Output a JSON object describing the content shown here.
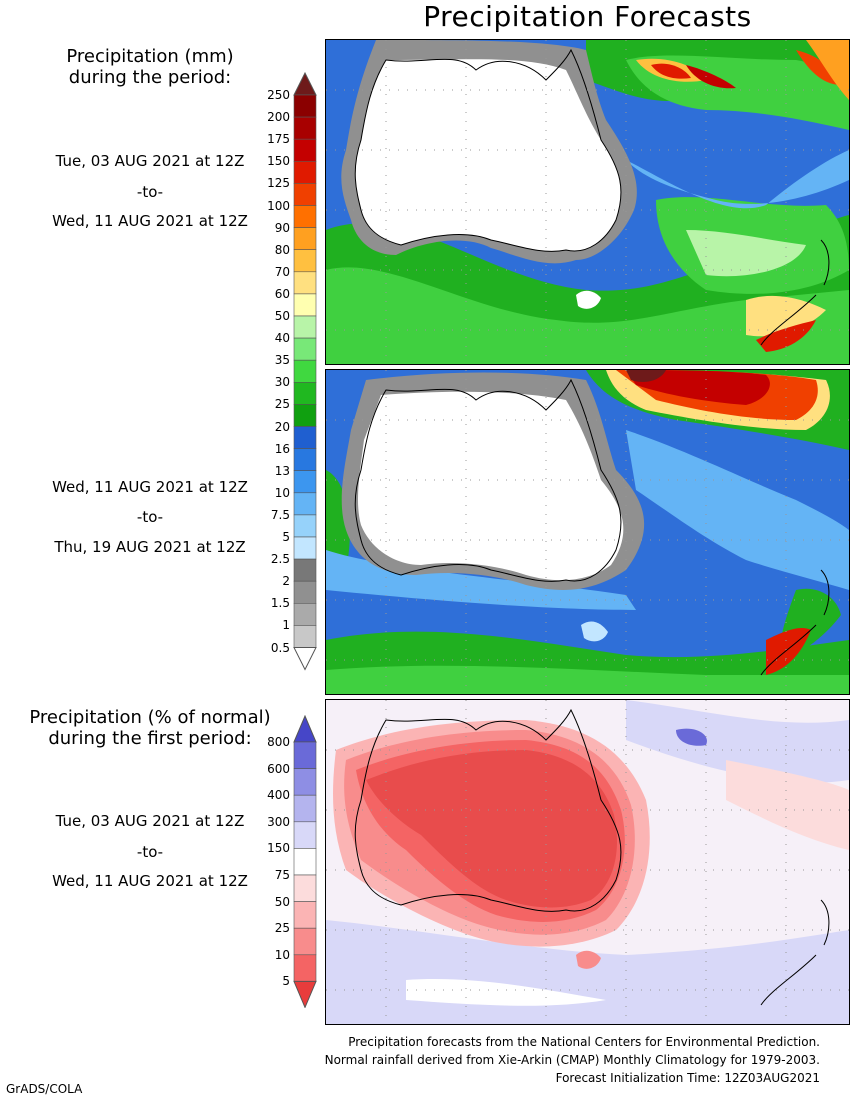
{
  "title": "Precipitation Forecasts",
  "legend_mm": {
    "title_line1": "Precipitation (mm)",
    "title_line2": "during the period:",
    "ticks": [
      "250",
      "200",
      "175",
      "150",
      "125",
      "100",
      "90",
      "80",
      "70",
      "60",
      "50",
      "40",
      "35",
      "30",
      "25",
      "20",
      "16",
      "13",
      "10",
      "7.5",
      "5",
      "2.5",
      "2",
      "1.5",
      "1",
      "0.5"
    ],
    "colors": [
      "#6e1a1a",
      "#8b0000",
      "#a80000",
      "#c40000",
      "#e01a00",
      "#f04000",
      "#ff7000",
      "#ffa020",
      "#ffc040",
      "#ffe080",
      "#ffffb0",
      "#b8f4a8",
      "#78e878",
      "#40d840",
      "#20b820",
      "#10a010",
      "#1f5fd0",
      "#2878e0",
      "#3c96ef",
      "#64b4f5",
      "#96d2fa",
      "#c2e6ff",
      "#787878",
      "#909090",
      "#aaaaaa",
      "#c8c8c8",
      "#ffffff"
    ]
  },
  "legend_pct": {
    "title_line1": "Precipitation (% of normal)",
    "title_line2": "during the first period:",
    "ticks": [
      "800",
      "600",
      "400",
      "300",
      "150",
      "75",
      "50",
      "25",
      "10",
      "5"
    ],
    "colors": [
      "#4646c8",
      "#6a6ad8",
      "#8e8ee4",
      "#b4b4ee",
      "#d8d8f8",
      "#ffffff",
      "#fcdcdc",
      "#fbb4b4",
      "#f88c8c",
      "#f46464",
      "#e83c3c"
    ]
  },
  "periods": [
    {
      "start": "Tue, 03 AUG 2021 at 12Z",
      "sep": "-to-",
      "end": "Wed, 11 AUG 2021 at 12Z"
    },
    {
      "start": "Wed, 11 AUG 2021 at 12Z",
      "sep": "-to-",
      "end": "Thu, 19 AUG 2021 at 12Z"
    },
    {
      "start": "Tue, 03 AUG 2021 at 12Z",
      "sep": "-to-",
      "end": "Wed, 11 AUG 2021 at 12Z"
    }
  ],
  "footer": {
    "line1": "Precipitation forecasts from the National Centers for Environmental Prediction.",
    "line2": "Normal rainfall derived from Xie-Arkin (CMAP) Monthly Climatology for 1979-2003.",
    "line3": "Forecast Initialization Time: 12Z03AUG2021"
  },
  "credit": "GrADS/COLA"
}
